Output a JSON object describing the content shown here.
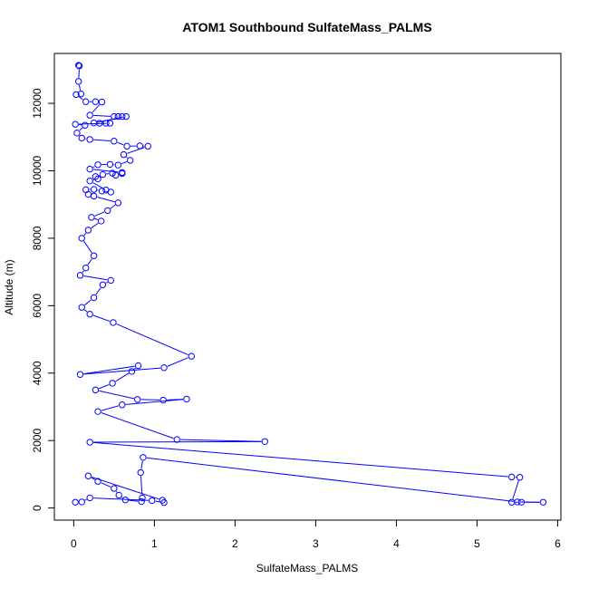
{
  "chart_data": {
    "type": "line",
    "title": "ATOM1 Southbound SulfateMass_PALMS",
    "xlabel": "SulfateMass_PALMS",
    "ylabel": "Altitude (m)",
    "xlim": [
      -0.24,
      6.04
    ],
    "ylim": [
      -360,
      13480
    ],
    "x_ticks": [
      0,
      1,
      2,
      3,
      4,
      5,
      6
    ],
    "y_ticks": [
      0,
      2000,
      4000,
      6000,
      8000,
      10000,
      12000
    ],
    "grid": false,
    "legend": "none",
    "series": [
      {
        "color": "#0000ff",
        "marker": "open-circle",
        "points": [
          [
            0.06,
            13130
          ],
          [
            0.07,
            13110
          ],
          [
            0.06,
            12650
          ],
          [
            0.09,
            12280
          ],
          [
            0.03,
            12260
          ],
          [
            0.15,
            12050
          ],
          [
            0.27,
            12050
          ],
          [
            0.35,
            12040
          ],
          [
            0.2,
            11650
          ],
          [
            0.5,
            11610
          ],
          [
            0.55,
            11610
          ],
          [
            0.6,
            11610
          ],
          [
            0.65,
            11610
          ],
          [
            0.25,
            11420
          ],
          [
            0.32,
            11410
          ],
          [
            0.4,
            11410
          ],
          [
            0.45,
            11410
          ],
          [
            0.02,
            11380
          ],
          [
            0.14,
            11350
          ],
          [
            0.04,
            11120
          ],
          [
            0.1,
            10970
          ],
          [
            0.2,
            10930
          ],
          [
            0.5,
            10880
          ],
          [
            0.66,
            10730
          ],
          [
            0.82,
            10740
          ],
          [
            0.92,
            10730
          ],
          [
            0.62,
            10480
          ],
          [
            0.7,
            10310
          ],
          [
            0.55,
            10170
          ],
          [
            0.45,
            10190
          ],
          [
            0.3,
            10180
          ],
          [
            0.2,
            10050
          ],
          [
            0.6,
            9950
          ],
          [
            0.6,
            9920
          ],
          [
            0.52,
            9870
          ],
          [
            0.48,
            9930
          ],
          [
            0.36,
            9890
          ],
          [
            0.27,
            9830
          ],
          [
            0.3,
            9760
          ],
          [
            0.2,
            9700
          ],
          [
            0.4,
            9430
          ],
          [
            0.46,
            9370
          ],
          [
            0.35,
            9400
          ],
          [
            0.25,
            9450
          ],
          [
            0.15,
            9440
          ],
          [
            0.18,
            9300
          ],
          [
            0.25,
            9250
          ],
          [
            0.55,
            9050
          ],
          [
            0.42,
            8820
          ],
          [
            0.22,
            8620
          ],
          [
            0.34,
            8510
          ],
          [
            0.18,
            8240
          ],
          [
            0.1,
            8000
          ],
          [
            0.25,
            7480
          ],
          [
            0.15,
            7120
          ],
          [
            0.08,
            6900
          ],
          [
            0.46,
            6750
          ],
          [
            0.36,
            6620
          ],
          [
            0.25,
            6240
          ],
          [
            0.1,
            5950
          ],
          [
            0.2,
            5750
          ],
          [
            0.49,
            5500
          ],
          [
            1.46,
            4500
          ],
          [
            1.12,
            4160
          ],
          [
            0.08,
            3960
          ],
          [
            0.8,
            4220
          ],
          [
            0.72,
            4050
          ],
          [
            0.48,
            3700
          ],
          [
            0.27,
            3500
          ],
          [
            0.79,
            3220
          ],
          [
            1.11,
            3200
          ],
          [
            1.4,
            3230
          ],
          [
            0.6,
            3060
          ],
          [
            0.3,
            2860
          ],
          [
            1.28,
            2030
          ],
          [
            2.37,
            1970
          ],
          [
            0.2,
            1950
          ],
          [
            5.43,
            920
          ],
          [
            5.53,
            910
          ],
          [
            5.43,
            170
          ],
          [
            5.55,
            170
          ],
          [
            5.82,
            170
          ],
          [
            5.5,
            180
          ],
          [
            0.86,
            1500
          ],
          [
            0.83,
            1050
          ],
          [
            0.85,
            300
          ],
          [
            0.84,
            190
          ],
          [
            0.64,
            240
          ],
          [
            0.56,
            380
          ],
          [
            0.5,
            580
          ],
          [
            0.3,
            790
          ],
          [
            0.18,
            950
          ],
          [
            1.1,
            230
          ],
          [
            1.12,
            160
          ],
          [
            0.97,
            220
          ],
          [
            0.2,
            300
          ],
          [
            0.1,
            180
          ],
          [
            0.02,
            170
          ]
        ]
      }
    ]
  }
}
